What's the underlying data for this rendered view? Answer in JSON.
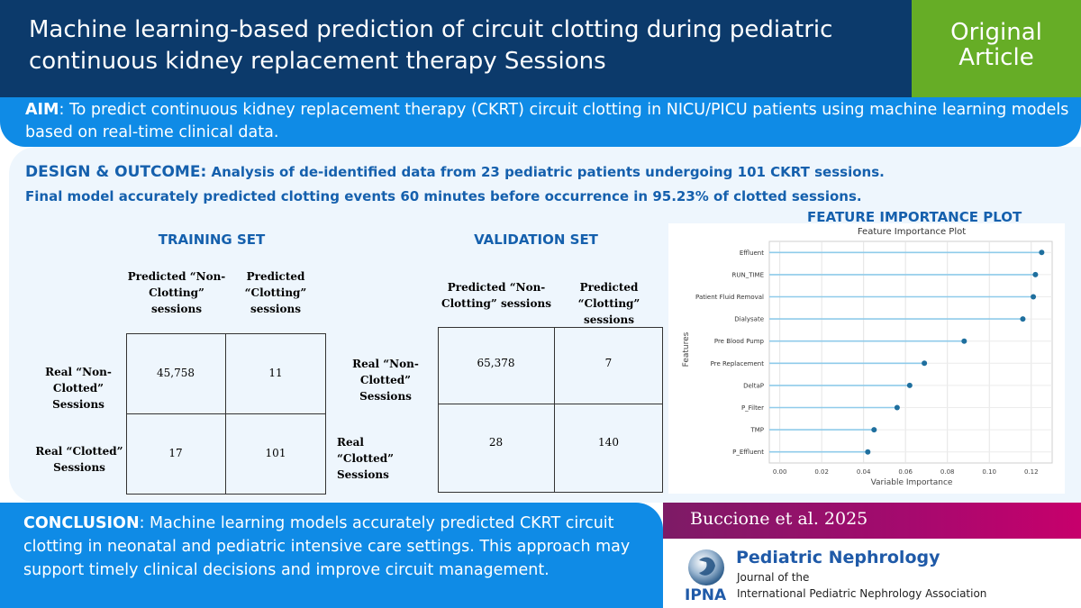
{
  "header": {
    "title": "Machine learning-based prediction of circuit clotting during pediatric continuous kidney replacement therapy  Sessions",
    "badge_line1": "Original",
    "badge_line2": "Article"
  },
  "aim": {
    "label": "AIM",
    "text": ": To predict continuous kidney replacement therapy (CKRT) circuit clotting in NICU/PICU patients using machine learning models based on real-time clinical data."
  },
  "design": {
    "label": "DESIGN & OUTCOME:",
    "line1": "Analysis of de-identified data from 23 pediatric patients undergoing 101 CKRT sessions.",
    "line2": "Final model accurately predicted clotting events 60 minutes before occurrence in 95.23% of clotted sessions."
  },
  "training": {
    "title": "TRAINING SET",
    "col1": "Predicted “Non-Clotting” sessions",
    "col2": "Predicted “Clotting” sessions",
    "row1": "Real “Non-Clotted” Sessions",
    "row2": "Real “Clotted” Sessions",
    "v11": "45,758",
    "v12": "11",
    "v21": "17",
    "v22": "101"
  },
  "validation": {
    "title": "VALIDATION SET",
    "col1": "Predicted “Non-Clotting” sessions",
    "col2": "Predicted “Clotting” sessions",
    "row1": "Real “Non-Clotted” Sessions",
    "row2": "Real “Clotted” Sessions",
    "v11": "65,378",
    "v12": "7",
    "v21": "28",
    "v22": "140"
  },
  "plot_heading": "FEATURE IMPORTANCE PLOT",
  "chart_data": {
    "type": "scatter",
    "title": "Feature Importance Plot",
    "xlabel": "Variable Importance",
    "ylabel": "Features",
    "xlim": [
      -0.005,
      0.13
    ],
    "xticks": [
      "0.00",
      "0.02",
      "0.04",
      "0.06",
      "0.08",
      "0.10",
      "0.12"
    ],
    "grid": true,
    "categories": [
      "Effluent",
      "RUN_TIME",
      "Patient Fluid Removal",
      "Dialysate",
      "Pre Blood Pump",
      "Pre Replacement",
      "DeltaP",
      "P_Filter",
      "TMP",
      "P_Effluent"
    ],
    "values": [
      0.125,
      0.122,
      0.121,
      0.116,
      0.088,
      0.069,
      0.062,
      0.056,
      0.045,
      0.042
    ],
    "colors": {
      "point": "#1f6f9e",
      "stem": "#8fcbea"
    }
  },
  "conclusion": {
    "label": "CONCLUSION",
    "text": ": Machine learning models accurately predicted CKRT circuit clotting in neonatal and pediatric intensive care settings. This approach may support timely clinical decisions and improve circuit management."
  },
  "citation": "Buccione et al. 2025",
  "journal": {
    "name": "Pediatric Nephrology",
    "line1": "Journal of the",
    "line2": "International Pediatric Nephrology Association",
    "logo_text": "IPNA"
  }
}
